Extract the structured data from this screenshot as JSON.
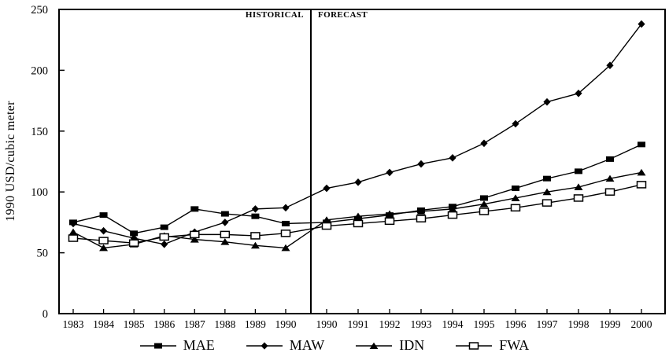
{
  "chart_data": {
    "type": "line",
    "title": "",
    "ylabel": "1990 USD/cubic meter",
    "xlabel": "",
    "ylim": [
      0,
      250
    ],
    "y_ticks": [
      0,
      50,
      100,
      150,
      200,
      250
    ],
    "x_labels": [
      "1983",
      "1984",
      "1985",
      "1986",
      "1987",
      "1988",
      "1989",
      "1990",
      "1990",
      "1991",
      "1992",
      "1993",
      "1994",
      "1995",
      "1996",
      "1997",
      "1998",
      "1999",
      "2000"
    ],
    "regions": {
      "historical_label": "HISTORICAL",
      "forecast_label": "FORECAST",
      "divider_between_indices": [
        7,
        8
      ]
    },
    "grid": false,
    "legend_position": "bottom",
    "line_color": "#000000",
    "series": [
      {
        "name": "MAE",
        "marker": "filled-square",
        "values": [
          75,
          81,
          66,
          71,
          86,
          82,
          80,
          74,
          75,
          78,
          81,
          85,
          88,
          95,
          103,
          111,
          117,
          127,
          139
        ]
      },
      {
        "name": "MAW",
        "marker": "filled-diamond",
        "values": [
          74,
          68,
          62,
          57,
          67,
          75,
          86,
          87,
          103,
          108,
          116,
          123,
          128,
          140,
          156,
          174,
          181,
          204,
          238
        ]
      },
      {
        "name": "IDN",
        "marker": "filled-triangle",
        "values": [
          67,
          54,
          57,
          64,
          61,
          59,
          56,
          54,
          77,
          80,
          82,
          84,
          86,
          90,
          95,
          100,
          104,
          111,
          116
        ]
      },
      {
        "name": "FWA",
        "marker": "open-square",
        "values": [
          62,
          60,
          58,
          63,
          65,
          65,
          64,
          66,
          72,
          74,
          76,
          78,
          81,
          84,
          87,
          91,
          95,
          100,
          106
        ]
      }
    ]
  }
}
